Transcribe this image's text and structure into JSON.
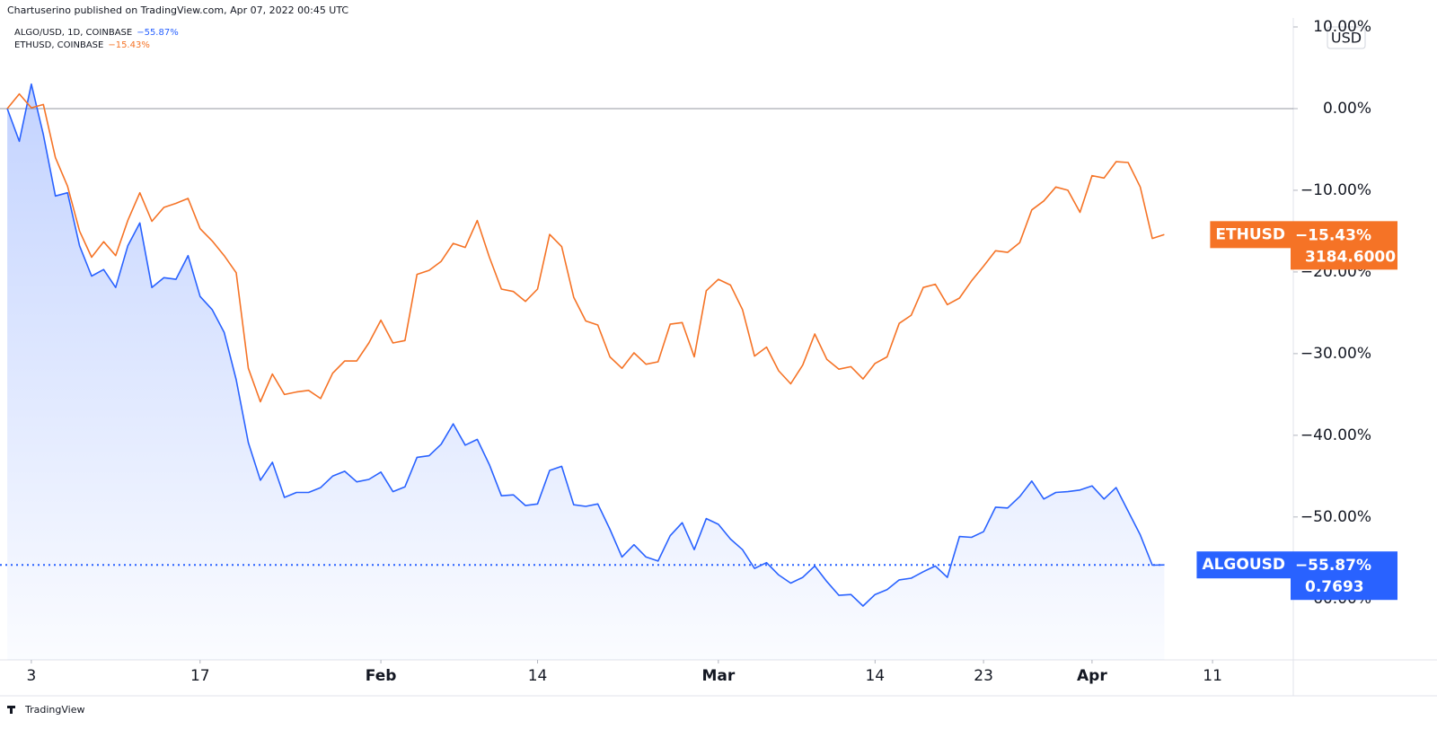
{
  "header": "Chartuserino published on TradingView.com, Apr 07, 2022 00:45 UTC",
  "footer": "TradingView",
  "chart_data": {
    "type": "line",
    "currency": "USD",
    "x": [
      1,
      2,
      3,
      4,
      5,
      6,
      7,
      8,
      9,
      10,
      11,
      12,
      13,
      14,
      15,
      16,
      17,
      18,
      19,
      20,
      21,
      22,
      23,
      24,
      25,
      26,
      27,
      28,
      29,
      30,
      31,
      32,
      33,
      34,
      35,
      36,
      37,
      38,
      39,
      40,
      41,
      42,
      43,
      44,
      45,
      46,
      47,
      48,
      49,
      50,
      51,
      52,
      53,
      54,
      55,
      56,
      57,
      58,
      59,
      60,
      61,
      62,
      63,
      64,
      65,
      66,
      67,
      68,
      69,
      70,
      71,
      72,
      73,
      74,
      75,
      76,
      77,
      78,
      79,
      80,
      81,
      82,
      83,
      84,
      85,
      86,
      87,
      88,
      89,
      90,
      91,
      92,
      93,
      94,
      95,
      96,
      97
    ],
    "xlim": [
      0.4,
      107.7
    ],
    "xticks": [
      {
        "value": 3,
        "label": "3"
      },
      {
        "value": 17,
        "label": "17"
      },
      {
        "value": 32,
        "label": "Feb"
      },
      {
        "value": 45,
        "label": "14"
      },
      {
        "value": 60,
        "label": "Mar"
      },
      {
        "value": 73,
        "label": "14"
      },
      {
        "value": 82,
        "label": "23"
      },
      {
        "value": 91,
        "label": "Apr"
      },
      {
        "value": 101,
        "label": "11"
      }
    ],
    "ylim": [
      -67.5,
      11.1
    ],
    "yticks": [
      {
        "value": 10,
        "label": "10.00%"
      },
      {
        "value": 0,
        "label": "0.00%"
      },
      {
        "value": -10,
        "label": "−10.00%"
      },
      {
        "value": -20,
        "label": "−20.00%"
      },
      {
        "value": -30,
        "label": "−30.00%"
      },
      {
        "value": -40,
        "label": "−40.00%"
      },
      {
        "value": -50,
        "label": "−50.00%"
      },
      {
        "value": -60,
        "label": "−60.00%"
      }
    ],
    "grid": false,
    "series": [
      {
        "name": "ALGO/USD, 1D, COINBASE",
        "badge": "ALGOUSD",
        "color": "#2962ff",
        "area": true,
        "last_label": "−55.87%",
        "price": {
          "value": 0.7693,
          "label": "0.7693"
        },
        "values": [
          0,
          -4,
          3,
          -3.2,
          -10.7,
          -10.3,
          -16.8,
          -20.5,
          -19.7,
          -21.9,
          -16.8,
          -14,
          -21.9,
          -20.7,
          -20.9,
          -18,
          -23,
          -24.6,
          -27.4,
          -33.2,
          -40.9,
          -45.5,
          -43.3,
          -47.6,
          -47,
          -47,
          -46.4,
          -45,
          -44.4,
          -45.7,
          -45.4,
          -44.5,
          -46.9,
          -46.3,
          -42.7,
          -42.5,
          -41.1,
          -38.6,
          -41.2,
          -40.5,
          -43.6,
          -47.4,
          -47.3,
          -48.6,
          -48.4,
          -44.3,
          -43.8,
          -48.5,
          -48.7,
          -48.4,
          -51.5,
          -54.9,
          -53.4,
          -54.9,
          -55.4,
          -52.3,
          -50.7,
          -54,
          -50.2,
          -50.9,
          -52.7,
          -54,
          -56.3,
          -55.6,
          -57.1,
          -58.1,
          -57.4,
          -56,
          -57.9,
          -59.6,
          -59.5,
          -60.9,
          -59.5,
          -58.9,
          -57.7,
          -57.5,
          -56.7,
          -56,
          -57.4,
          -52.4,
          -52.5,
          -51.8,
          -48.8,
          -48.9,
          -47.5,
          -45.6,
          -47.8,
          -47,
          -46.9,
          -46.7,
          -46.2,
          -47.8,
          -46.4,
          -49.3,
          -52.2,
          -55.9,
          -55.87
        ]
      },
      {
        "name": "ETHUSD, COINBASE",
        "badge": "ETHUSD",
        "color": "#f57326",
        "area": false,
        "last_label": "−15.43%",
        "price": {
          "value": 3184.6,
          "label": "3184.6000"
        },
        "values": [
          0,
          1.8,
          0.1,
          0.5,
          -6,
          -9.5,
          -15,
          -18.2,
          -16.3,
          -18,
          -13.7,
          -10.3,
          -13.8,
          -12.1,
          -11.6,
          -11,
          -14.7,
          -16.2,
          -18,
          -20.1,
          -31.8,
          -35.9,
          -32.5,
          -35,
          -34.7,
          -34.5,
          -35.5,
          -32.4,
          -30.9,
          -30.9,
          -28.7,
          -25.9,
          -28.7,
          -28.4,
          -20.3,
          -19.8,
          -18.7,
          -16.5,
          -17,
          -13.7,
          -18.2,
          -22.1,
          -22.4,
          -23.6,
          -22.1,
          -15.4,
          -16.9,
          -23.1,
          -26,
          -26.5,
          -30.4,
          -31.8,
          -29.9,
          -31.3,
          -31,
          -26.4,
          -26.2,
          -30.4,
          -22.3,
          -20.9,
          -21.6,
          -24.6,
          -30.3,
          -29.2,
          -32.1,
          -33.7,
          -31.4,
          -27.6,
          -30.7,
          -31.9,
          -31.6,
          -33.1,
          -31.2,
          -30.4,
          -26.3,
          -25.3,
          -21.9,
          -21.5,
          -24,
          -23.2,
          -21.1,
          -19.3,
          -17.4,
          -17.6,
          -16.4,
          -12.4,
          -11.3,
          -9.6,
          -10,
          -12.7,
          -8.2,
          -8.5,
          -6.5,
          -6.6,
          -9.6,
          -15.9,
          -15.43
        ]
      }
    ]
  }
}
